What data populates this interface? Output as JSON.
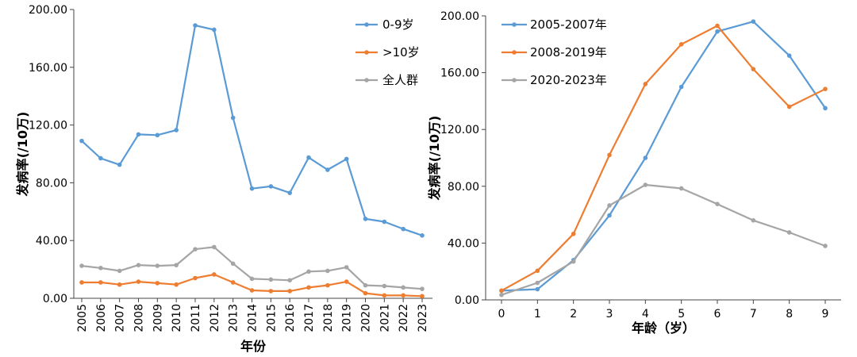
{
  "chart_data": [
    {
      "type": "line",
      "title": "",
      "xlabel": "年份",
      "ylabel": "发病率(/10万)",
      "ylim": [
        0,
        200
      ],
      "yticks": [
        "0.00",
        "40.00",
        "80.00",
        "120.00",
        "160.00",
        "200.00"
      ],
      "categories": [
        "2005",
        "2006",
        "2007",
        "2008",
        "2009",
        "2010",
        "2011",
        "2012",
        "2013",
        "2014",
        "2015",
        "2016",
        "2017",
        "2018",
        "2019",
        "2020",
        "2021",
        "2022",
        "2023"
      ],
      "legend_position": "top-right",
      "grid": false,
      "series": [
        {
          "name": "0-9岁",
          "color": "#5b9bd5",
          "values": [
            109,
            97,
            92.5,
            113.5,
            113,
            116.5,
            189,
            186,
            125,
            76,
            77.5,
            73,
            97.5,
            89,
            96.5,
            55,
            53,
            48,
            43.5
          ]
        },
        {
          "name": ">10岁",
          "color": "#ed7d31",
          "values": [
            11,
            11,
            9.5,
            11.5,
            10.5,
            9.5,
            14,
            16.5,
            11,
            5.5,
            5,
            5,
            7.5,
            9,
            11.5,
            3.5,
            2,
            2,
            1.5
          ]
        },
        {
          "name": "全人群",
          "color": "#a5a5a5",
          "values": [
            22.5,
            21,
            19,
            23,
            22.5,
            23,
            34,
            35.5,
            24,
            13.5,
            13,
            12.5,
            18.5,
            19,
            21.5,
            9,
            8.5,
            7.5,
            6.5
          ]
        }
      ]
    },
    {
      "type": "line",
      "title": "",
      "xlabel": "年龄（岁）",
      "ylabel": "发病率(/10万)",
      "ylim": [
        0,
        200
      ],
      "yticks": [
        "0.00",
        "40.00",
        "80.00",
        "120.00",
        "160.00",
        "200.00"
      ],
      "categories": [
        "0",
        "1",
        "2",
        "3",
        "4",
        "5",
        "6",
        "7",
        "8",
        "9"
      ],
      "legend_position": "top-left",
      "grid": false,
      "series": [
        {
          "name": "2005-2007年",
          "color": "#5b9bd5",
          "values": [
            6.5,
            7.5,
            28,
            59.5,
            100,
            150,
            189,
            196,
            172,
            135
          ]
        },
        {
          "name": "2008-2019年",
          "color": "#ed7d31",
          "values": [
            6.5,
            20.5,
            46.5,
            102,
            152,
            180,
            193,
            162.5,
            136,
            148.5
          ]
        },
        {
          "name": "2020-2023年",
          "color": "#a5a5a5",
          "values": [
            3.5,
            12,
            27,
            66.5,
            81,
            78.5,
            67.5,
            56,
            47.5,
            38
          ]
        }
      ]
    }
  ]
}
